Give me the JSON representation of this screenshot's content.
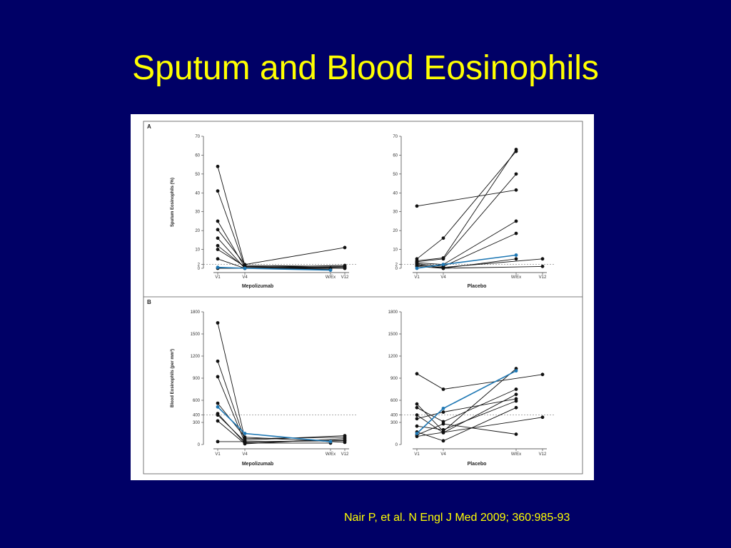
{
  "slide": {
    "title": "Sputum and Blood Eosinophils",
    "citation": "Nair P, et al. N Engl J Med 2009; 360:985-93"
  },
  "colors": {
    "background": "#000066",
    "title": "#ffff00",
    "highlight_series": "#1f78b4",
    "series": "#111111"
  },
  "chart_data": [
    {
      "type": "line",
      "panel": "A",
      "group": "Mepolizumab",
      "ylabel": "Sputum Eosinophils (%)",
      "x": [
        "V1",
        "V4",
        "W/Ex",
        "V12"
      ],
      "yticks": [
        0,
        2,
        10,
        20,
        30,
        40,
        50,
        60,
        70
      ],
      "ylim": [
        0,
        70
      ],
      "reference_line": 2,
      "series": [
        {
          "values": [
            54,
            1.5,
            null,
            1
          ],
          "highlight": false
        },
        {
          "values": [
            41,
            1,
            null,
            0.5
          ],
          "highlight": false
        },
        {
          "values": [
            25,
            0.5,
            null,
            0
          ],
          "highlight": false
        },
        {
          "values": [
            20.5,
            2,
            null,
            11
          ],
          "highlight": false
        },
        {
          "values": [
            16,
            0,
            0,
            null
          ],
          "highlight": false
        },
        {
          "values": [
            12,
            0.5,
            null,
            1.5
          ],
          "highlight": false
        },
        {
          "values": [
            10,
            1,
            null,
            0
          ],
          "highlight": false
        },
        {
          "values": [
            5,
            0,
            -0.5,
            null
          ],
          "highlight": false
        },
        {
          "values": [
            0,
            0,
            null,
            null
          ],
          "highlight": false
        },
        {
          "values": [
            0.5,
            0,
            -1,
            null
          ],
          "highlight": true
        }
      ]
    },
    {
      "type": "line",
      "panel": "A",
      "group": "Placebo",
      "ylabel": "",
      "x": [
        "V1",
        "V4",
        "W/Ex",
        "V12"
      ],
      "yticks": [
        0,
        2,
        10,
        20,
        30,
        40,
        50,
        60,
        70
      ],
      "ylim": [
        0,
        70
      ],
      "reference_line": 2,
      "series": [
        {
          "values": [
            33,
            null,
            41.5,
            null
          ],
          "highlight": false
        },
        {
          "values": [
            5,
            16,
            62,
            null
          ],
          "highlight": false
        },
        {
          "values": [
            4,
            5.5,
            63,
            null
          ],
          "highlight": false
        },
        {
          "values": [
            3.5,
            5,
            50,
            null
          ],
          "highlight": false
        },
        {
          "values": [
            3,
            2,
            25,
            null
          ],
          "highlight": false
        },
        {
          "values": [
            2.5,
            1,
            18.5,
            null
          ],
          "highlight": false
        },
        {
          "values": [
            2,
            0,
            5,
            null
          ],
          "highlight": false
        },
        {
          "values": [
            1.5,
            0.5,
            null,
            5
          ],
          "highlight": false
        },
        {
          "values": [
            1,
            0,
            null,
            1
          ],
          "highlight": false
        },
        {
          "values": [
            0,
            2,
            7,
            null
          ],
          "highlight": true
        }
      ]
    },
    {
      "type": "line",
      "panel": "B",
      "group": "Mepolizumab",
      "ylabel": "Blood Eosinophils (per mm³)",
      "x": [
        "V1",
        "V4",
        "W/Ex",
        "V12"
      ],
      "yticks": [
        0,
        300,
        400,
        600,
        900,
        1200,
        1500,
        1800
      ],
      "ylim": [
        0,
        1800
      ],
      "reference_line": 400,
      "series": [
        {
          "values": [
            1650,
            80,
            null,
            100
          ],
          "highlight": false
        },
        {
          "values": [
            1130,
            60,
            null,
            120
          ],
          "highlight": false
        },
        {
          "values": [
            920,
            30,
            null,
            60
          ],
          "highlight": false
        },
        {
          "values": [
            560,
            100,
            null,
            30
          ],
          "highlight": false
        },
        {
          "values": [
            420,
            20,
            20,
            null
          ],
          "highlight": false
        },
        {
          "values": [
            400,
            40,
            null,
            50
          ],
          "highlight": false
        },
        {
          "values": [
            320,
            10,
            null,
            80
          ],
          "highlight": false
        },
        {
          "values": [
            40,
            40,
            null,
            null
          ],
          "highlight": false
        },
        {
          "values": [
            510,
            150,
            40,
            null
          ],
          "highlight": true
        }
      ]
    },
    {
      "type": "line",
      "panel": "B",
      "group": "Placebo",
      "ylabel": "",
      "x": [
        "V1",
        "V4",
        "W/Ex",
        "V12"
      ],
      "yticks": [
        0,
        300,
        400,
        600,
        900,
        1200,
        1500,
        1800
      ],
      "ylim": [
        0,
        1800
      ],
      "reference_line": 400,
      "series": [
        {
          "values": [
            960,
            750,
            null,
            950
          ],
          "highlight": false
        },
        {
          "values": [
            550,
            180,
            1030,
            null
          ],
          "highlight": false
        },
        {
          "values": [
            500,
            310,
            750,
            null
          ],
          "highlight": false
        },
        {
          "values": [
            400,
            160,
            680,
            null
          ],
          "highlight": false
        },
        {
          "values": [
            350,
            440,
            620,
            null
          ],
          "highlight": false
        },
        {
          "values": [
            250,
            200,
            590,
            null
          ],
          "highlight": false
        },
        {
          "values": [
            170,
            50,
            500,
            null
          ],
          "highlight": false
        },
        {
          "values": [
            130,
            280,
            140,
            null
          ],
          "highlight": false
        },
        {
          "values": [
            110,
            null,
            null,
            370
          ],
          "highlight": false
        },
        {
          "values": [
            150,
            490,
            1000,
            null
          ],
          "highlight": true
        }
      ]
    }
  ]
}
